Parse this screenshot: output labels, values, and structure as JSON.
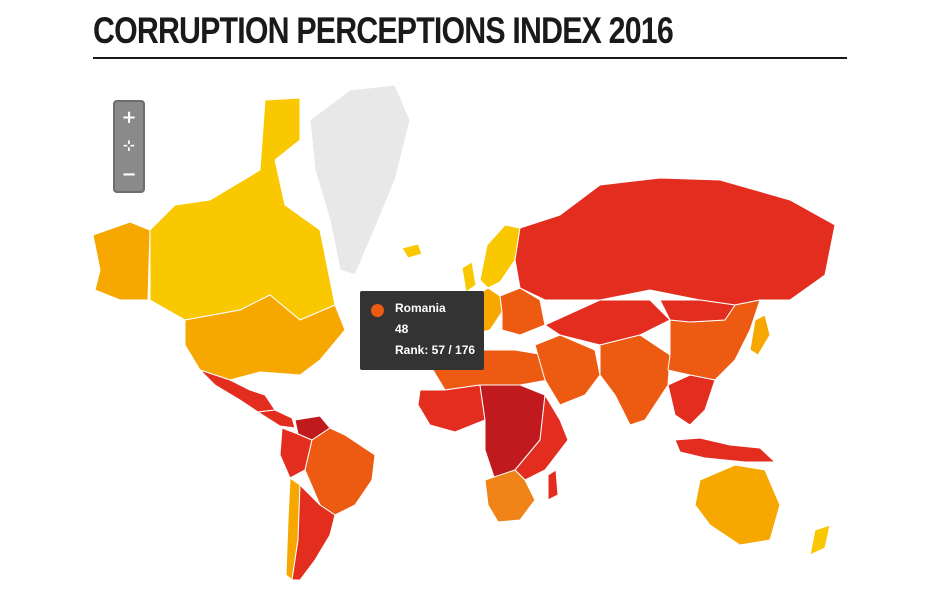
{
  "header": {
    "title": "CORRUPTION PERCEPTIONS INDEX 2016"
  },
  "colors": {
    "very_clean": "#f9c800",
    "clean": "#f6a800",
    "medium": "#f08419",
    "corrupt_mid": "#ed5a12",
    "corrupt": "#e32d1f",
    "very_corrupt": "#c01a1f",
    "no_data": "#e8e8e8",
    "border": "#ffffff"
  },
  "zoom_controls": {
    "zoom_in": "+",
    "reset": "⊹",
    "zoom_out": "−",
    "icons": [
      "plus-icon",
      "reset-icon",
      "minus-icon"
    ]
  },
  "tooltip": {
    "country": "Romania",
    "score": "48",
    "rank": "Rank: 57 / 176",
    "color": "#ed5a12"
  },
  "regions": [
    {
      "name": "canada",
      "band": "very_clean"
    },
    {
      "name": "usa",
      "band": "clean"
    },
    {
      "name": "alaska",
      "band": "clean"
    },
    {
      "name": "greenland",
      "band": "no_data"
    },
    {
      "name": "iceland",
      "band": "very_clean"
    },
    {
      "name": "scandinavia",
      "band": "very_clean"
    },
    {
      "name": "western-europe",
      "band": "clean"
    },
    {
      "name": "eastern-europe",
      "band": "corrupt_mid"
    },
    {
      "name": "russia",
      "band": "corrupt"
    },
    {
      "name": "mexico",
      "band": "corrupt"
    },
    {
      "name": "central-america",
      "band": "corrupt"
    },
    {
      "name": "south-america-north",
      "band": "corrupt"
    },
    {
      "name": "venezuela",
      "band": "very_corrupt"
    },
    {
      "name": "brazil",
      "band": "corrupt_mid"
    },
    {
      "name": "chile",
      "band": "clean"
    },
    {
      "name": "argentina",
      "band": "corrupt"
    },
    {
      "name": "north-africa",
      "band": "corrupt_mid"
    },
    {
      "name": "west-africa",
      "band": "corrupt"
    },
    {
      "name": "central-africa",
      "band": "very_corrupt"
    },
    {
      "name": "east-africa",
      "band": "corrupt"
    },
    {
      "name": "southern-africa",
      "band": "medium"
    },
    {
      "name": "middle-east",
      "band": "corrupt_mid"
    },
    {
      "name": "central-asia",
      "band": "corrupt"
    },
    {
      "name": "india",
      "band": "corrupt_mid"
    },
    {
      "name": "china",
      "band": "corrupt_mid"
    },
    {
      "name": "mongolia",
      "band": "corrupt"
    },
    {
      "name": "japan",
      "band": "clean"
    },
    {
      "name": "southeast-asia",
      "band": "corrupt"
    },
    {
      "name": "indonesia",
      "band": "corrupt"
    },
    {
      "name": "australia",
      "band": "clean"
    },
    {
      "name": "new-zealand",
      "band": "very_clean"
    },
    {
      "name": "madagascar",
      "band": "corrupt"
    },
    {
      "name": "uk-ireland",
      "band": "very_clean"
    }
  ]
}
